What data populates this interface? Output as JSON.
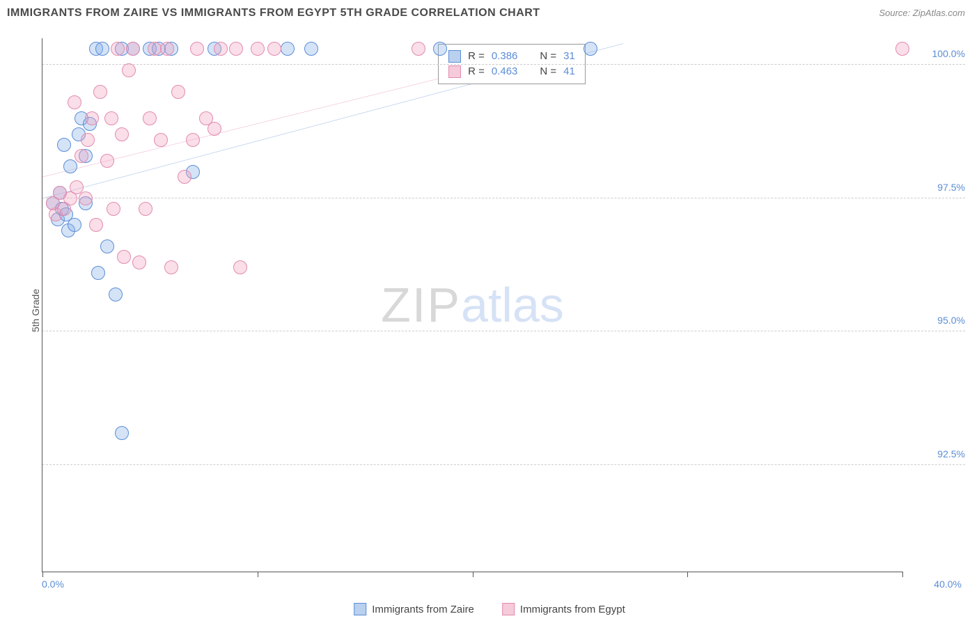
{
  "title": "IMMIGRANTS FROM ZAIRE VS IMMIGRANTS FROM EGYPT 5TH GRADE CORRELATION CHART",
  "source_label": "Source: ",
  "source_name": "ZipAtlas.com",
  "ylabel": "5th Grade",
  "watermark_a": "ZIP",
  "watermark_b": "atlas",
  "chart": {
    "type": "scatter",
    "x_domain": [
      0,
      40
    ],
    "y_domain": [
      90.5,
      100.5
    ],
    "y_gridlines": [
      92.5,
      95.0,
      97.5,
      100.0
    ],
    "y_tick_labels": [
      "92.5%",
      "95.0%",
      "97.5%",
      "100.0%"
    ],
    "x_tick_left": "0.0%",
    "x_tick_right": "40.0%",
    "x_minor_ticks": [
      0,
      10,
      20,
      30,
      40
    ],
    "marker_radius": 10,
    "marker_stroke_width": 1.5,
    "grid_color": "#cccccc",
    "axis_color": "#555555",
    "tick_label_color": "#5b8dd6",
    "background_color": "#ffffff",
    "series": [
      {
        "name": "Immigrants from Zaire",
        "color_fill": "rgba(135,176,232,0.35)",
        "color_stroke": "#5b8dd6",
        "swatch_fill": "#b9d0ef",
        "swatch_border": "#5b8dd6",
        "R": "0.386",
        "N": "31",
        "trend": {
          "x1": 0,
          "y1": 97.5,
          "x2": 27,
          "y2": 100.4,
          "color": "#1b5fc1",
          "width": 2
        },
        "points": [
          [
            0.5,
            97.4
          ],
          [
            0.7,
            97.1
          ],
          [
            0.8,
            97.6
          ],
          [
            0.9,
            97.3
          ],
          [
            1.0,
            98.5
          ],
          [
            1.1,
            97.2
          ],
          [
            1.2,
            96.9
          ],
          [
            1.3,
            98.1
          ],
          [
            1.5,
            97.0
          ],
          [
            1.7,
            98.7
          ],
          [
            1.8,
            99.0
          ],
          [
            2.0,
            98.3
          ],
          [
            2.0,
            97.4
          ],
          [
            2.2,
            98.9
          ],
          [
            2.5,
            100.3
          ],
          [
            2.6,
            96.1
          ],
          [
            2.8,
            100.3
          ],
          [
            3.0,
            96.6
          ],
          [
            3.4,
            95.7
          ],
          [
            3.7,
            100.3
          ],
          [
            3.7,
            93.1
          ],
          [
            4.2,
            100.3
          ],
          [
            5.0,
            100.3
          ],
          [
            5.4,
            100.3
          ],
          [
            6.0,
            100.3
          ],
          [
            7.0,
            98.0
          ],
          [
            8.0,
            100.3
          ],
          [
            11.4,
            100.3
          ],
          [
            12.5,
            100.3
          ],
          [
            18.5,
            100.3
          ],
          [
            25.5,
            100.3
          ]
        ]
      },
      {
        "name": "Immigrants from Egypt",
        "color_fill": "rgba(240,160,190,0.35)",
        "color_stroke": "#e28bb0",
        "swatch_fill": "#f5cad9",
        "swatch_border": "#e28bb0",
        "R": "0.463",
        "N": "41",
        "trend": {
          "x1": 0,
          "y1": 97.9,
          "x2": 25,
          "y2": 100.4,
          "color": "#d94f8a",
          "width": 2
        },
        "points": [
          [
            0.5,
            97.4
          ],
          [
            0.6,
            97.2
          ],
          [
            0.8,
            97.6
          ],
          [
            1.0,
            97.3
          ],
          [
            1.3,
            97.5
          ],
          [
            1.5,
            99.3
          ],
          [
            1.6,
            97.7
          ],
          [
            1.8,
            98.3
          ],
          [
            2.0,
            97.5
          ],
          [
            2.1,
            98.6
          ],
          [
            2.3,
            99.0
          ],
          [
            2.5,
            97.0
          ],
          [
            2.7,
            99.5
          ],
          [
            3.0,
            98.2
          ],
          [
            3.2,
            99.0
          ],
          [
            3.3,
            97.3
          ],
          [
            3.5,
            100.3
          ],
          [
            3.7,
            98.7
          ],
          [
            3.8,
            96.4
          ],
          [
            4.0,
            99.9
          ],
          [
            4.2,
            100.3
          ],
          [
            4.5,
            96.3
          ],
          [
            4.8,
            97.3
          ],
          [
            5.0,
            99.0
          ],
          [
            5.2,
            100.3
          ],
          [
            5.5,
            98.6
          ],
          [
            5.8,
            100.3
          ],
          [
            6.0,
            96.2
          ],
          [
            6.3,
            99.5
          ],
          [
            6.6,
            97.9
          ],
          [
            7.0,
            98.6
          ],
          [
            7.2,
            100.3
          ],
          [
            7.6,
            99.0
          ],
          [
            8.0,
            98.8
          ],
          [
            8.3,
            100.3
          ],
          [
            9.0,
            100.3
          ],
          [
            9.2,
            96.2
          ],
          [
            10.0,
            100.3
          ],
          [
            10.8,
            100.3
          ],
          [
            17.5,
            100.3
          ],
          [
            40.0,
            100.3
          ]
        ]
      }
    ]
  },
  "legend_box": {
    "left_pct": 46,
    "top_pct": 1,
    "r_label": "R =",
    "n_label": "N ="
  },
  "bottom_legend": true
}
